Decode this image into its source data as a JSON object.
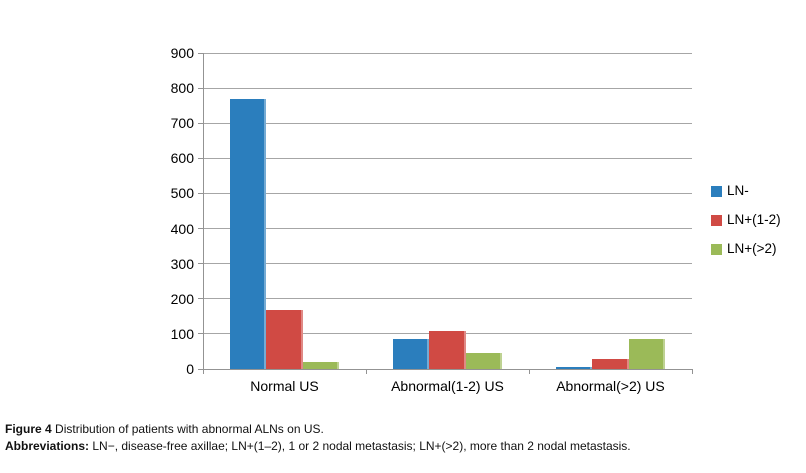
{
  "caption": {
    "figure_label": "Figure 4",
    "figure_text": "Distribution of patients with abnormal ALNs on US.",
    "abbrev_label": "Abbreviations:",
    "abbrev_text": "LN−, disease-free axillae; LN+(1–2), 1 or 2 nodal metastasis; LN+(>2), more than 2 nodal metastasis."
  },
  "chart_data": {
    "type": "bar",
    "title": "",
    "xlabel": "",
    "ylabel": "",
    "categories": [
      "Normal US",
      "Abnormal(1-2) US",
      "Abnormal(>2) US"
    ],
    "series": [
      {
        "name": "LN-",
        "color": "#2B7EBD",
        "values": [
          770,
          85,
          7
        ]
      },
      {
        "name": "LN+(1-2)",
        "color": "#D04A44",
        "values": [
          167,
          108,
          28
        ]
      },
      {
        "name": "LN+(>2)",
        "color": "#9BBA58",
        "values": [
          20,
          46,
          85
        ]
      }
    ],
    "ylim": [
      0,
      900
    ],
    "ytick_step": 100,
    "grid": true,
    "legend_position": "right",
    "gridline_color": "#A6A6A6",
    "axis_color": "#939393"
  }
}
